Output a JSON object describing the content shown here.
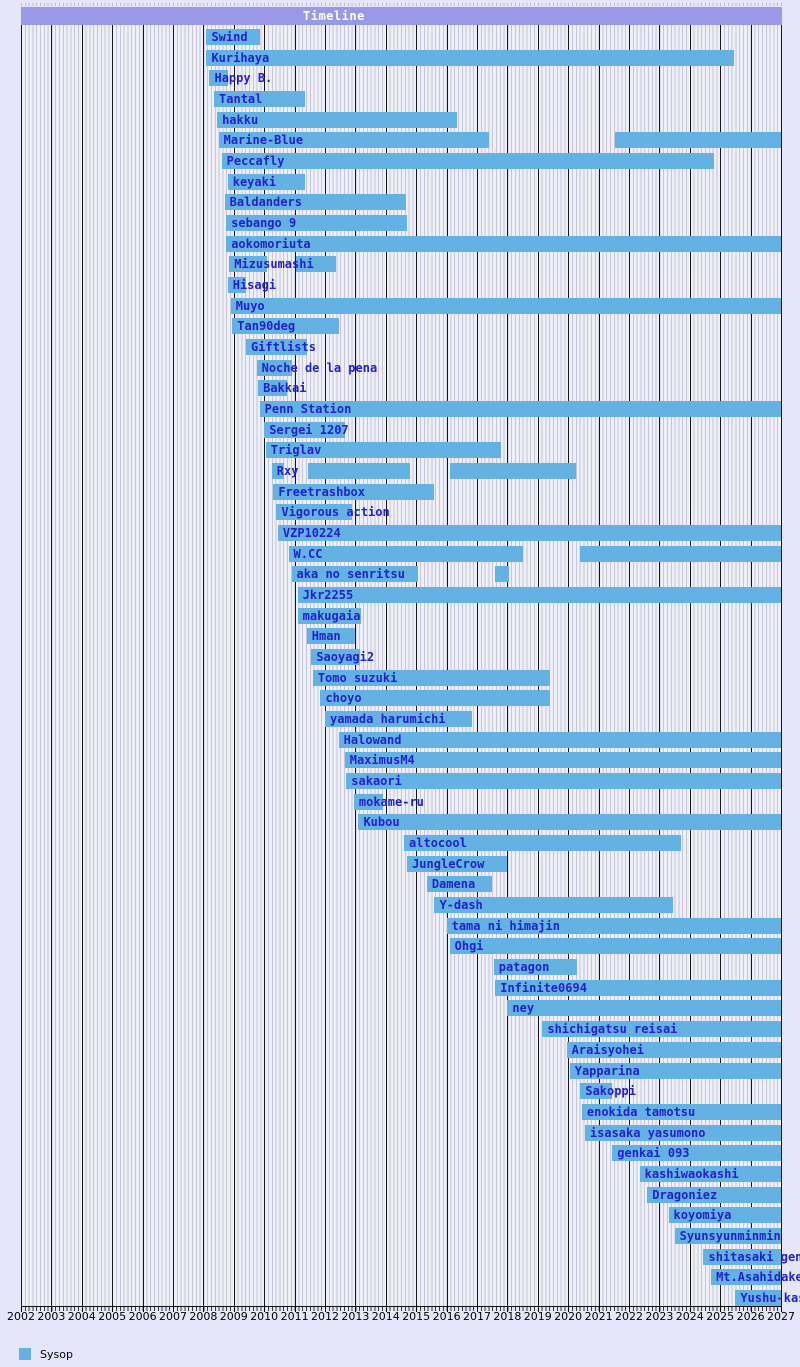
{
  "page": {
    "background": "#e6e6fa"
  },
  "header": {
    "title": "Timeline",
    "background": "#9a99e8",
    "title_color": "#ffffff"
  },
  "legend": {
    "items": [
      {
        "label": "Sysop",
        "color": "#64b1e3"
      }
    ]
  },
  "chart_data": {
    "type": "gantt-timeline",
    "title": "Timeline",
    "legend_position": "bottom-left",
    "grid": {
      "plot_background": "#efeff7",
      "minor_stripe_color": "#c6c6d6",
      "year_line_color": "#161616"
    },
    "bar_color": "#64b1e3",
    "label_color": "#2222cc",
    "x_axis": {
      "min": 2002,
      "max": 2027,
      "tick_labels": [
        "2002",
        "2003",
        "2004",
        "2005",
        "2006",
        "2007",
        "2008",
        "2009",
        "2010",
        "2011",
        "2012",
        "2013",
        "2014",
        "2015",
        "2016",
        "2017",
        "2018",
        "2019",
        "2020",
        "2021",
        "2022",
        "2023",
        "2024",
        "2025",
        "2026",
        "2027"
      ]
    },
    "rows": [
      {
        "name": "Swind",
        "segments": [
          [
            2008.1,
            2009.85
          ]
        ]
      },
      {
        "name": "Kurihaya",
        "segments": [
          [
            2008.1,
            2025.45
          ]
        ]
      },
      {
        "name": "Happy B.",
        "segments": [
          [
            2008.2,
            2008.8
          ]
        ]
      },
      {
        "name": "Tantal",
        "segments": [
          [
            2008.35,
            2011.35
          ]
        ]
      },
      {
        "name": "hakku",
        "segments": [
          [
            2008.45,
            2016.35
          ]
        ]
      },
      {
        "name": "Marine-Blue",
        "segments": [
          [
            2008.5,
            2017.4
          ],
          [
            2021.55,
            2027
          ]
        ]
      },
      {
        "name": "Peccafly",
        "segments": [
          [
            2008.6,
            2024.8
          ]
        ]
      },
      {
        "name": "keyaki",
        "segments": [
          [
            2008.8,
            2011.35
          ]
        ]
      },
      {
        "name": "Baldanders",
        "segments": [
          [
            2008.7,
            2014.65
          ]
        ]
      },
      {
        "name": "sebango 9",
        "segments": [
          [
            2008.75,
            2014.7
          ]
        ]
      },
      {
        "name": "aokomoriuta",
        "segments": [
          [
            2008.75,
            2027
          ]
        ]
      },
      {
        "name": "Mizusumashi",
        "segments": [
          [
            2008.85,
            2010.1
          ],
          [
            2011.05,
            2012.35
          ]
        ]
      },
      {
        "name": "Hisagi",
        "segments": [
          [
            2008.8,
            2009.4
          ]
        ]
      },
      {
        "name": "Muyo",
        "segments": [
          [
            2008.9,
            2027
          ]
        ]
      },
      {
        "name": "Tan90deg",
        "segments": [
          [
            2008.95,
            2012.45
          ]
        ]
      },
      {
        "name": "Giftlists",
        "segments": [
          [
            2009.4,
            2011.4
          ]
        ]
      },
      {
        "name": "Noche de la pena",
        "segments": [
          [
            2009.75,
            2010.9
          ]
        ]
      },
      {
        "name": "Bakkai",
        "segments": [
          [
            2009.8,
            2010.75
          ]
        ]
      },
      {
        "name": "Penn Station",
        "segments": [
          [
            2009.85,
            2027
          ]
        ]
      },
      {
        "name": "Sergei 1207",
        "segments": [
          [
            2010.0,
            2012.65
          ]
        ]
      },
      {
        "name": "Triglav",
        "segments": [
          [
            2010.05,
            2017.8
          ]
        ]
      },
      {
        "name": "Rxy",
        "segments": [
          [
            2010.25,
            2010.65
          ],
          [
            2011.45,
            2014.8
          ],
          [
            2016.1,
            2020.25
          ]
        ]
      },
      {
        "name": "Freetrashbox",
        "segments": [
          [
            2010.3,
            2015.6
          ]
        ]
      },
      {
        "name": "Vigorous action",
        "segments": [
          [
            2010.4,
            2012.9
          ]
        ]
      },
      {
        "name": "VZP10224",
        "segments": [
          [
            2010.45,
            2027
          ]
        ]
      },
      {
        "name": "W.CC",
        "segments": [
          [
            2010.8,
            2018.5
          ],
          [
            2020.4,
            2027
          ]
        ]
      },
      {
        "name": "aka no senritsu",
        "segments": [
          [
            2010.9,
            2015.05
          ],
          [
            2017.6,
            2018.05
          ]
        ]
      },
      {
        "name": "Jkr2255",
        "segments": [
          [
            2011.1,
            2027
          ]
        ]
      },
      {
        "name": "makugaia",
        "segments": [
          [
            2011.1,
            2013.2
          ]
        ]
      },
      {
        "name": "Hman",
        "segments": [
          [
            2011.4,
            2013.0
          ]
        ]
      },
      {
        "name": "Saoyagi2",
        "segments": [
          [
            2011.55,
            2013.15
          ]
        ]
      },
      {
        "name": "Tomo suzuki",
        "segments": [
          [
            2011.6,
            2019.4
          ]
        ]
      },
      {
        "name": "choyo",
        "segments": [
          [
            2011.85,
            2019.4
          ]
        ]
      },
      {
        "name": "yamada harumichi",
        "segments": [
          [
            2012.0,
            2016.85
          ]
        ]
      },
      {
        "name": "Halowand",
        "segments": [
          [
            2012.45,
            2027
          ]
        ]
      },
      {
        "name": "MaximusM4",
        "segments": [
          [
            2012.65,
            2027
          ]
        ]
      },
      {
        "name": "sakaori",
        "segments": [
          [
            2012.7,
            2027
          ]
        ]
      },
      {
        "name": "mokame-ru",
        "segments": [
          [
            2012.95,
            2013.9
          ]
        ]
      },
      {
        "name": "Kubou",
        "segments": [
          [
            2013.1,
            2027
          ]
        ]
      },
      {
        "name": "altocool",
        "segments": [
          [
            2014.6,
            2023.7
          ]
        ]
      },
      {
        "name": "JungleCrow",
        "segments": [
          [
            2014.7,
            2018.0
          ]
        ]
      },
      {
        "name": "Damena",
        "segments": [
          [
            2015.35,
            2017.5
          ]
        ]
      },
      {
        "name": "Y-dash",
        "segments": [
          [
            2015.6,
            2023.45
          ]
        ]
      },
      {
        "name": "tama ni himajin",
        "segments": [
          [
            2016.0,
            2027
          ]
        ]
      },
      {
        "name": "Ohgi",
        "segments": [
          [
            2016.1,
            2027
          ]
        ]
      },
      {
        "name": "patagon",
        "segments": [
          [
            2017.55,
            2020.3
          ]
        ]
      },
      {
        "name": "Infinite0694",
        "segments": [
          [
            2017.6,
            2027
          ]
        ]
      },
      {
        "name": "ney",
        "segments": [
          [
            2018.0,
            2027
          ]
        ]
      },
      {
        "name": "shichigatsu reisai",
        "segments": [
          [
            2019.15,
            2027
          ]
        ]
      },
      {
        "name": "Araisyohei",
        "segments": [
          [
            2019.95,
            2027
          ]
        ]
      },
      {
        "name": "Yapparina",
        "segments": [
          [
            2020.05,
            2027
          ]
        ]
      },
      {
        "name": "Sakoppi",
        "segments": [
          [
            2020.4,
            2021.45
          ]
        ]
      },
      {
        "name": "enokida tamotsu",
        "segments": [
          [
            2020.45,
            2027
          ]
        ]
      },
      {
        "name": "isasaka yasumono",
        "segments": [
          [
            2020.55,
            2027
          ]
        ]
      },
      {
        "name": "genkai 093",
        "segments": [
          [
            2021.45,
            2027
          ]
        ]
      },
      {
        "name": "kashiwaokashi",
        "segments": [
          [
            2022.35,
            2027
          ]
        ]
      },
      {
        "name": "Dragoniez",
        "segments": [
          [
            2022.6,
            2027
          ]
        ]
      },
      {
        "name": "koyomiya",
        "segments": [
          [
            2023.3,
            2027
          ]
        ]
      },
      {
        "name": "Syunsyunminmin",
        "segments": [
          [
            2023.5,
            2027
          ]
        ]
      },
      {
        "name": "shitasaki gen",
        "segments": [
          [
            2024.45,
            2027
          ]
        ]
      },
      {
        "name": "Mt.Asahidake",
        "segments": [
          [
            2024.7,
            2027
          ]
        ]
      },
      {
        "name": "Yushu-kas",
        "segments": [
          [
            2025.5,
            2027
          ]
        ]
      }
    ]
  }
}
